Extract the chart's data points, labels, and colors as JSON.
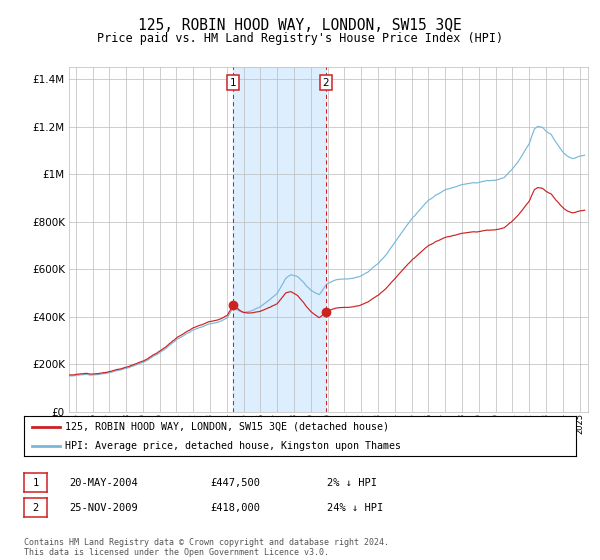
{
  "title": "125, ROBIN HOOD WAY, LONDON, SW15 3QE",
  "subtitle": "Price paid vs. HM Land Registry's House Price Index (HPI)",
  "footer": "Contains HM Land Registry data © Crown copyright and database right 2024.\nThis data is licensed under the Open Government Licence v3.0.",
  "legend_line1": "125, ROBIN HOOD WAY, LONDON, SW15 3QE (detached house)",
  "legend_line2": "HPI: Average price, detached house, Kingston upon Thames",
  "table": [
    {
      "num": "1",
      "date": "20-MAY-2004",
      "price": "£447,500",
      "hpi": "2% ↓ HPI"
    },
    {
      "num": "2",
      "date": "25-NOV-2009",
      "price": "£418,000",
      "hpi": "24% ↓ HPI"
    }
  ],
  "sale1_year": 2004.38,
  "sale1_price": 447500,
  "sale2_year": 2009.9,
  "sale2_price": 418000,
  "hpi_color": "#7ab8d9",
  "price_color": "#cc2222",
  "shade_color": "#ddeeff",
  "vline_color": "#cc2222",
  "grid_color": "#bbbbbb",
  "ylim": [
    0,
    1450000
  ],
  "xlim_start": 1994.6,
  "xlim_end": 2025.5
}
